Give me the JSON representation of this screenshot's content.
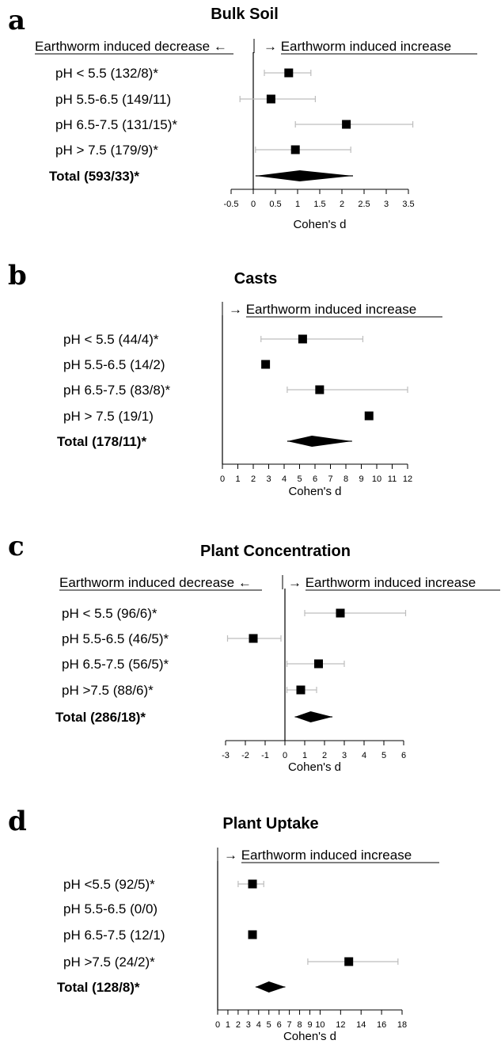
{
  "chart_data": [
    {
      "type": "forest",
      "panel": "a",
      "title": "Bulk Soil",
      "left_label": "Earthworm induced decrease ←",
      "right_label": "→ Earthworm induced increase",
      "xlabel": "Cohen's d",
      "xlim": [
        -0.5,
        3.5
      ],
      "ticks": [
        -0.5,
        0,
        0.5,
        1,
        1.5,
        2,
        2.5,
        3,
        3.5
      ],
      "tick_labels": [
        "-0.5",
        "0",
        "0.5",
        "1",
        "1.5",
        "2",
        "2.5",
        "3",
        "3.5"
      ],
      "rows": [
        {
          "label": "pH < 5.5 (132/8)*",
          "d": 0.8,
          "lo": 0.25,
          "hi": 1.3
        },
        {
          "label": "pH 5.5-6.5 (149/11)",
          "d": 0.4,
          "lo": -0.3,
          "hi": 1.4
        },
        {
          "label": "pH 6.5-7.5 (131/15)*",
          "d": 2.1,
          "lo": 0.95,
          "hi": 3.6
        },
        {
          "label": "pH > 7.5 (179/9)*",
          "d": 0.95,
          "lo": 0.05,
          "hi": 2.2
        }
      ],
      "total": {
        "label": "Total (593/33)*",
        "d": 1.05,
        "lo": 0.05,
        "hi": 2.25
      }
    },
    {
      "type": "forest",
      "panel": "b",
      "title": "Casts",
      "left_label": "",
      "right_label": "→ Earthworm induced increase",
      "xlabel": "Cohen's d",
      "xlim": [
        0,
        12
      ],
      "ticks": [
        0,
        1,
        2,
        3,
        4,
        5,
        6,
        7,
        8,
        9,
        10,
        11,
        12
      ],
      "tick_labels": [
        "0",
        "1",
        "2",
        "3",
        "4",
        "5",
        "6",
        "7",
        "8",
        "9",
        "10",
        "11",
        "12"
      ],
      "rows": [
        {
          "label": "pH < 5.5 (44/4)*",
          "d": 5.2,
          "lo": 2.5,
          "hi": 9.1
        },
        {
          "label": "pH 5.5-6.5 (14/2)",
          "d": 2.8,
          "lo": null,
          "hi": null
        },
        {
          "label": "pH 6.5-7.5 (83/8)*",
          "d": 6.3,
          "lo": 4.2,
          "hi": 12.0
        },
        {
          "label": "pH > 7.5 (19/1)",
          "d": 9.5,
          "lo": null,
          "hi": null
        }
      ],
      "total": {
        "label": "Total (178/11)*",
        "d": 5.8,
        "lo": 4.2,
        "hi": 8.4
      }
    },
    {
      "type": "forest",
      "panel": "c",
      "title": "Plant Concentration",
      "left_label": "Earthworm induced decrease ←",
      "right_label": "→ Earthworm induced increase",
      "xlabel": "Cohen's d",
      "xlim": [
        -3,
        6
      ],
      "ticks": [
        -3,
        -2,
        -1,
        0,
        1,
        2,
        3,
        4,
        5,
        6
      ],
      "tick_labels": [
        "-3",
        "-2",
        "-1",
        "0",
        "1",
        "2",
        "3",
        "4",
        "5",
        "6"
      ],
      "rows": [
        {
          "label": "pH < 5.5 (96/6)*",
          "d": 2.8,
          "lo": 1.0,
          "hi": 6.1
        },
        {
          "label": "pH 5.5-6.5 (46/5)*",
          "d": -1.6,
          "lo": -2.9,
          "hi": -0.2
        },
        {
          "label": "pH 6.5-7.5 (56/5)*",
          "d": 1.7,
          "lo": 0.1,
          "hi": 3.0
        },
        {
          "label": "pH >7.5 (88/6)*",
          "d": 0.8,
          "lo": 0.1,
          "hi": 1.6
        }
      ],
      "total": {
        "label": "Total (286/18)*",
        "d": 1.3,
        "lo": 0.5,
        "hi": 2.4
      }
    },
    {
      "type": "forest",
      "panel": "d",
      "title": "Plant Uptake",
      "left_label": "",
      "right_label": "→ Earthworm induced increase",
      "xlabel": "Cohen's d",
      "xlim": [
        0,
        18
      ],
      "ticks": [
        0,
        1,
        2,
        3,
        4,
        5,
        6,
        7,
        8,
        9,
        10,
        12,
        14,
        16,
        18
      ],
      "tick_labels": [
        "0",
        "1",
        "2",
        "3",
        "4",
        "5",
        "6",
        "7",
        "8",
        "9",
        "10",
        "12",
        "14",
        "16",
        "18"
      ],
      "rows": [
        {
          "label": "pH <5.5 (92/5)*",
          "d": 3.4,
          "lo": 2.0,
          "hi": 4.5
        },
        {
          "label": "pH 5.5-6.5 (0/0)",
          "d": null,
          "lo": null,
          "hi": null
        },
        {
          "label": "pH 6.5-7.5 (12/1)",
          "d": 3.4,
          "lo": null,
          "hi": null
        },
        {
          "label": "pH >7.5 (24/2)*",
          "d": 12.8,
          "lo": 8.8,
          "hi": 17.6
        }
      ],
      "total": {
        "label": "Total (128/8)*",
        "d": 5.0,
        "lo": 3.7,
        "hi": 6.6
      }
    }
  ]
}
